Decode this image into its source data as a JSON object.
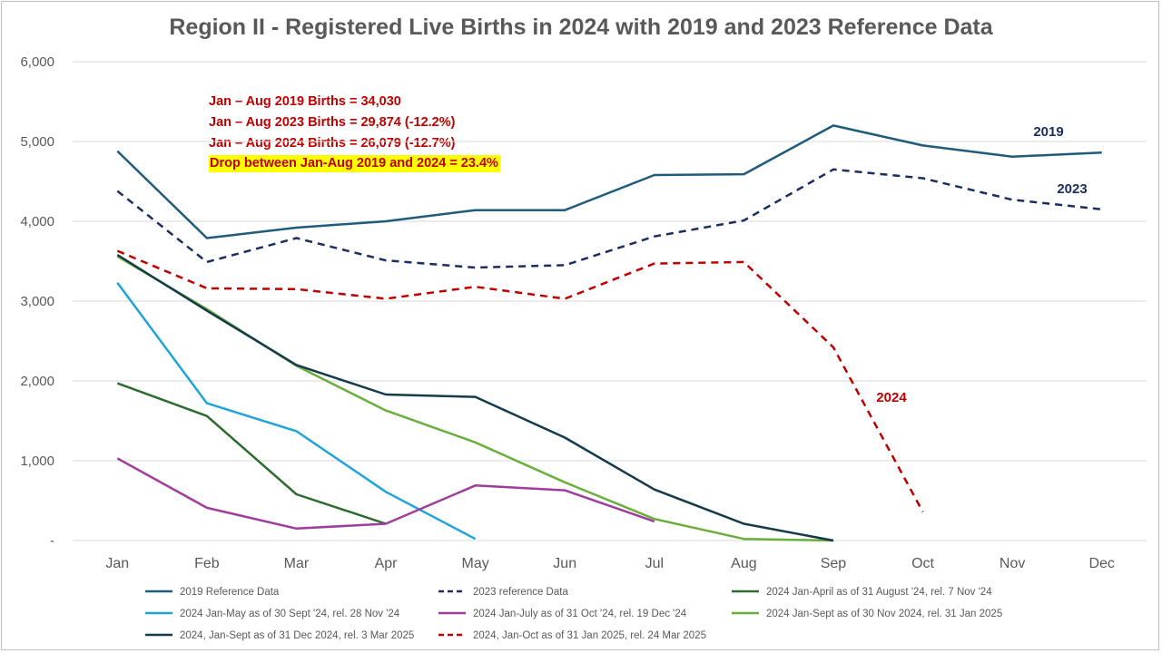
{
  "chart_data": {
    "type": "line",
    "title": "Region II - Registered Live Births in 2024 with 2019 and 2023 Reference Data",
    "categories": [
      "Jan",
      "Feb",
      "Mar",
      "Apr",
      "May",
      "Jun",
      "Jul",
      "Aug",
      "Sep",
      "Oct",
      "Nov",
      "Dec"
    ],
    "ylim": [
      0,
      6000
    ],
    "yticks": [
      0,
      1000,
      2000,
      3000,
      4000,
      5000,
      6000
    ],
    "ytick_labels": [
      "-",
      "1,000",
      "2,000",
      "3,000",
      "4,000",
      "5,000",
      "6,000"
    ],
    "grid": true,
    "legend_position": "bottom",
    "series": [
      {
        "name": "2019 Reference Data",
        "color": "#1f5b7a",
        "dash": false,
        "width": 2.5,
        "values": [
          4880,
          3790,
          3920,
          4000,
          4140,
          4140,
          4580,
          4590,
          5200,
          4950,
          4810,
          4860
        ]
      },
      {
        "name": "2023 reference Data",
        "color": "#1a2f5e",
        "dash": true,
        "width": 2.5,
        "values": [
          4380,
          3490,
          3790,
          3510,
          3420,
          3450,
          3810,
          4010,
          4650,
          4540,
          4270,
          4150
        ]
      },
      {
        "name": "2024 Jan-April as of 31 August '24, rel. 7 Nov '24",
        "color": "#2e6b2e",
        "dash": false,
        "width": 2.5,
        "values": [
          1970,
          1560,
          580,
          210,
          null,
          null,
          null,
          null,
          null,
          null,
          null,
          null
        ]
      },
      {
        "name": "2024 Jan-May as of 30 Sept '24, rel. 28 Nov '24",
        "color": "#1ea4d8",
        "dash": false,
        "width": 2.5,
        "values": [
          3230,
          1720,
          1370,
          610,
          20,
          null,
          null,
          null,
          null,
          null,
          null,
          null
        ]
      },
      {
        "name": "2024 Jan-July as of 31 Oct '24, rel. 19 Dec '24",
        "color": "#a03c9b",
        "dash": false,
        "width": 2.5,
        "values": [
          1030,
          410,
          150,
          210,
          690,
          630,
          240,
          null,
          null,
          null,
          null,
          null
        ]
      },
      {
        "name": "2024 Jan-Sept as of 30 Nov 2024, rel. 31 Jan 2025",
        "color": "#6aae3c",
        "dash": false,
        "width": 2.5,
        "values": [
          3560,
          2900,
          2190,
          1630,
          1230,
          730,
          270,
          20,
          0,
          null,
          null,
          null
        ]
      },
      {
        "name": "2024, Jan-Sept as of 31 Dec 2024, rel. 3 Mar 2025",
        "color": "#143a4b",
        "dash": false,
        "width": 2.5,
        "values": [
          3580,
          2880,
          2200,
          1830,
          1800,
          1290,
          640,
          210,
          0,
          null,
          null,
          null
        ]
      },
      {
        "name": "2024, Jan-Oct as of 31 Jan 2025, rel. 24 Mar 2025",
        "color": "#c00000",
        "dash": true,
        "width": 2.5,
        "values": [
          3630,
          3160,
          3150,
          3030,
          3180,
          3030,
          3470,
          3490,
          2420,
          360,
          null,
          null
        ]
      }
    ],
    "annotations": [
      "Jan – Aug 2019 Births  = 34,030",
      "Jan – Aug 2023 Births  = 29,874 (-12.2%)",
      "Jan – Aug 2024 Births  = 26,079 (-12.7%)",
      "Drop between Jan-Aug 2019 and 2024 = 23.4%"
    ],
    "series_labels": [
      {
        "text": "2019",
        "color": "#1a2f5e"
      },
      {
        "text": "2023",
        "color": "#1a2f5e"
      },
      {
        "text": "2024",
        "color": "#c00000"
      }
    ]
  }
}
